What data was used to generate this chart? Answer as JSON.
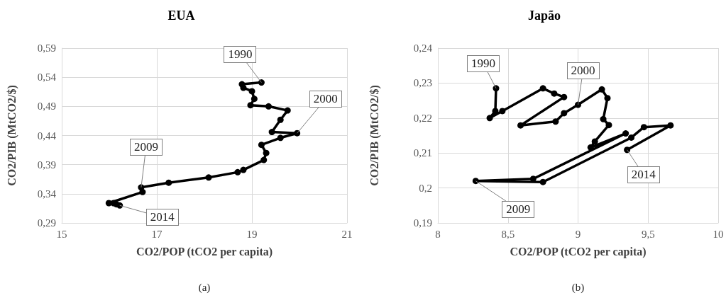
{
  "chart_data": [
    {
      "type": "line",
      "title": "EUA",
      "xlabel": "CO2/POP (tCO2 per capita)",
      "ylabel": "CO2/PIB (MtCO2/$)",
      "marker": "circle",
      "grid": true,
      "line_style": "solid",
      "xlim": [
        15,
        21
      ],
      "xticks": [
        15,
        17,
        19,
        21
      ],
      "ylim": [
        0.29,
        0.59
      ],
      "yticks": [
        {
          "value": 0.29,
          "label": "0,29"
        },
        {
          "value": 0.34,
          "label": "0,34"
        },
        {
          "value": 0.39,
          "label": "0,39"
        },
        {
          "value": 0.44,
          "label": "0,44"
        },
        {
          "value": 0.49,
          "label": "0,49"
        },
        {
          "value": 0.54,
          "label": "0,54"
        },
        {
          "value": 0.59,
          "label": "0,59"
        }
      ],
      "series": [
        {
          "color": "#000000",
          "x": [
            19.2,
            18.79,
            18.82,
            19.0,
            19.05,
            18.97,
            19.35,
            19.75,
            19.6,
            19.42,
            19.95,
            19.6,
            19.2,
            19.3,
            19.25,
            18.82,
            18.7,
            18.09,
            17.25,
            16.67,
            16.7,
            15.99,
            16.09,
            16.15,
            16.22
          ],
          "values": [
            0.531,
            0.528,
            0.522,
            0.516,
            0.503,
            0.492,
            0.49,
            0.483,
            0.467,
            0.446,
            0.444,
            0.436,
            0.424,
            0.41,
            0.398,
            0.381,
            0.377,
            0.368,
            0.359,
            0.351,
            0.343,
            0.324,
            0.324,
            0.322,
            0.32
          ]
        }
      ],
      "annotations": [
        {
          "text": "1990",
          "x": 19.2,
          "y": 0.531
        },
        {
          "text": "2000",
          "x": 19.95,
          "y": 0.444
        },
        {
          "text": "2009",
          "x": 16.67,
          "y": 0.351
        },
        {
          "text": "2014",
          "x": 16.22,
          "y": 0.32
        },
        "(a)"
      ]
    },
    {
      "type": "line",
      "title": "Japão",
      "xlabel": "CO2/POP (tCO2 per capita)",
      "ylabel": "CO2/PIB (MtCO2/$)",
      "marker": "circle",
      "grid": true,
      "line_style": "solid",
      "xlim": [
        8,
        10
      ],
      "xticks": [
        8,
        {
          "value": 8.5,
          "label": "8,5"
        },
        9,
        {
          "value": 9.5,
          "label": "9,5"
        },
        10
      ],
      "ylim": [
        0.19,
        0.24
      ],
      "yticks": [
        {
          "value": 0.19,
          "label": "0,19"
        },
        {
          "value": 0.2,
          "label": "0,2"
        },
        {
          "value": 0.21,
          "label": "0,21"
        },
        {
          "value": 0.22,
          "label": "0,22"
        },
        {
          "value": 0.23,
          "label": "0,23"
        },
        {
          "value": 0.24,
          "label": "0,24"
        }
      ],
      "series": [
        {
          "color": "#000000",
          "x": [
            8.415,
            8.41,
            8.37,
            8.46,
            8.75,
            8.83,
            8.9,
            8.59,
            8.84,
            8.9,
            9.0,
            9.17,
            9.21,
            9.18,
            9.22,
            9.12,
            9.09,
            9.34,
            8.68,
            8.27,
            8.75,
            9.38,
            9.47,
            9.66,
            9.35
          ],
          "values": [
            0.2285,
            0.222,
            0.22,
            0.222,
            0.2285,
            0.227,
            0.226,
            0.2179,
            0.219,
            0.2214,
            0.2238,
            0.2282,
            0.2257,
            0.2197,
            0.218,
            0.2133,
            0.2116,
            0.2156,
            0.2026,
            0.202,
            0.2017,
            0.2144,
            0.2174,
            0.2179,
            0.2109
          ]
        }
      ],
      "annotations": [
        {
          "text": "1990",
          "x": 8.415,
          "y": 0.2285
        },
        {
          "text": "2000",
          "x": 9.0,
          "y": 0.2238
        },
        {
          "text": "2014",
          "x": 9.35,
          "y": 0.2109
        },
        {
          "text": "2009",
          "x": 8.27,
          "y": 0.202
        },
        "(b)"
      ]
    }
  ]
}
